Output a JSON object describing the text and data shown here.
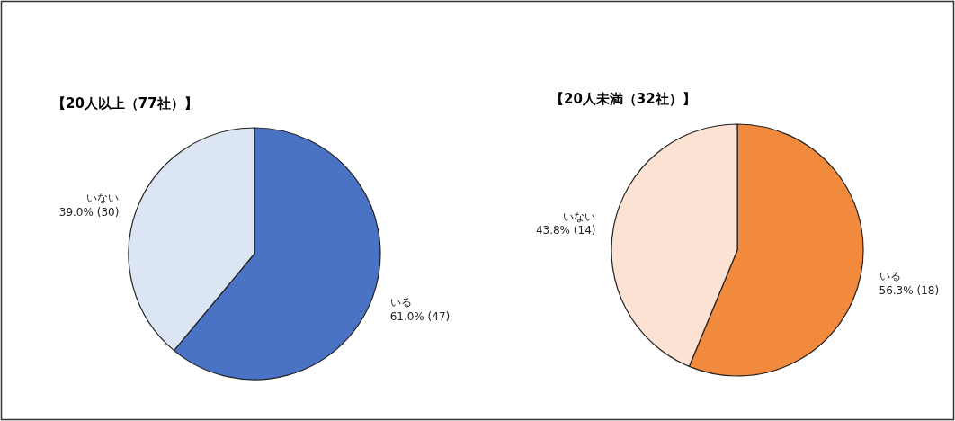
{
  "chart_data": [
    {
      "type": "pie",
      "title": "【20人以上（77社）】",
      "categories": [
        "いる",
        "いない"
      ],
      "values": [
        47,
        30
      ],
      "colors": [
        "#4a73c6",
        "#dce5f4"
      ],
      "value_labels": [
        "61.0% (47)",
        "39.0% (30)"
      ]
    },
    {
      "type": "pie",
      "title": "【20人未満（32社）】",
      "categories": [
        "いる",
        "いない"
      ],
      "values": [
        18,
        14
      ],
      "colors": [
        "#f28a3e",
        "#fbe2d2"
      ],
      "value_labels": [
        "56.3% (18)",
        "43.8% (14)"
      ]
    }
  ]
}
